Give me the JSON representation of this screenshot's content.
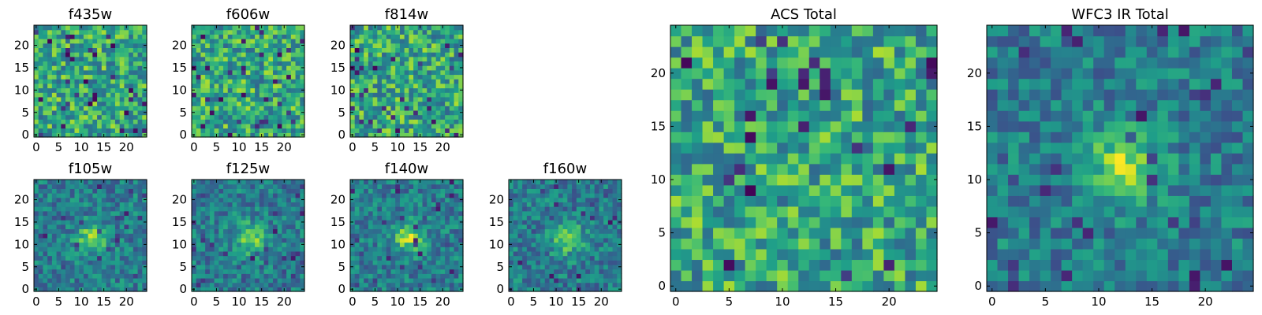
{
  "chart_data": [
    {
      "type": "heatmap",
      "title": "f435w",
      "x_ticks": [
        0,
        5,
        10,
        15,
        20
      ],
      "y_ticks": [
        0,
        5,
        10,
        15,
        20
      ],
      "xlim": [
        -0.5,
        24.5
      ],
      "ylim": [
        -0.5,
        24.5
      ],
      "grid_size": [
        25,
        25
      ],
      "colormap": "viridis",
      "feature": "noise"
    },
    {
      "type": "heatmap",
      "title": "f606w",
      "x_ticks": [
        0,
        5,
        10,
        15,
        20
      ],
      "y_ticks": [
        0,
        5,
        10,
        15,
        20
      ],
      "xlim": [
        -0.5,
        24.5
      ],
      "ylim": [
        -0.5,
        24.5
      ],
      "grid_size": [
        25,
        25
      ],
      "colormap": "viridis",
      "feature": "noise"
    },
    {
      "type": "heatmap",
      "title": "f814w",
      "x_ticks": [
        0,
        5,
        10,
        15,
        20
      ],
      "y_ticks": [
        0,
        5,
        10,
        15,
        20
      ],
      "xlim": [
        -0.5,
        24.5
      ],
      "ylim": [
        -0.5,
        24.5
      ],
      "grid_size": [
        25,
        25
      ],
      "colormap": "viridis",
      "feature": "noise"
    },
    {
      "type": "heatmap",
      "title": "f105w",
      "x_ticks": [
        0,
        5,
        10,
        15,
        20
      ],
      "y_ticks": [
        0,
        5,
        10,
        15,
        20
      ],
      "xlim": [
        -0.5,
        24.5
      ],
      "ylim": [
        -0.5,
        24.5
      ],
      "grid_size": [
        25,
        25
      ],
      "colormap": "viridis",
      "feature": "central source"
    },
    {
      "type": "heatmap",
      "title": "f125w",
      "x_ticks": [
        0,
        5,
        10,
        15,
        20
      ],
      "y_ticks": [
        0,
        5,
        10,
        15,
        20
      ],
      "xlim": [
        -0.5,
        24.5
      ],
      "ylim": [
        -0.5,
        24.5
      ],
      "grid_size": [
        25,
        25
      ],
      "colormap": "viridis",
      "feature": "central source"
    },
    {
      "type": "heatmap",
      "title": "f140w",
      "x_ticks": [
        0,
        5,
        10,
        15,
        20
      ],
      "y_ticks": [
        0,
        5,
        10,
        15,
        20
      ],
      "xlim": [
        -0.5,
        24.5
      ],
      "ylim": [
        -0.5,
        24.5
      ],
      "grid_size": [
        25,
        25
      ],
      "colormap": "viridis",
      "feature": "central source"
    },
    {
      "type": "heatmap",
      "title": "f160w",
      "x_ticks": [
        0,
        5,
        10,
        15,
        20
      ],
      "y_ticks": [
        0,
        5,
        10,
        15,
        20
      ],
      "xlim": [
        -0.5,
        24.5
      ],
      "ylim": [
        -0.5,
        24.5
      ],
      "grid_size": [
        25,
        25
      ],
      "colormap": "viridis",
      "feature": "central source"
    },
    {
      "type": "heatmap",
      "title": "ACS Total",
      "x_ticks": [
        0,
        5,
        10,
        15,
        20
      ],
      "y_ticks": [
        0,
        5,
        10,
        15,
        20
      ],
      "xlim": [
        -0.5,
        24.5
      ],
      "ylim": [
        -0.5,
        24.5
      ],
      "grid_size": [
        25,
        25
      ],
      "colormap": "viridis",
      "feature": "noise"
    },
    {
      "type": "heatmap",
      "title": "WFC3 IR Total",
      "x_ticks": [
        0,
        5,
        10,
        15,
        20
      ],
      "y_ticks": [
        0,
        5,
        10,
        15,
        20
      ],
      "xlim": [
        -0.5,
        24.5
      ],
      "ylim": [
        -0.5,
        24.5
      ],
      "grid_size": [
        25,
        25
      ],
      "colormap": "viridis",
      "feature": "central source"
    }
  ]
}
